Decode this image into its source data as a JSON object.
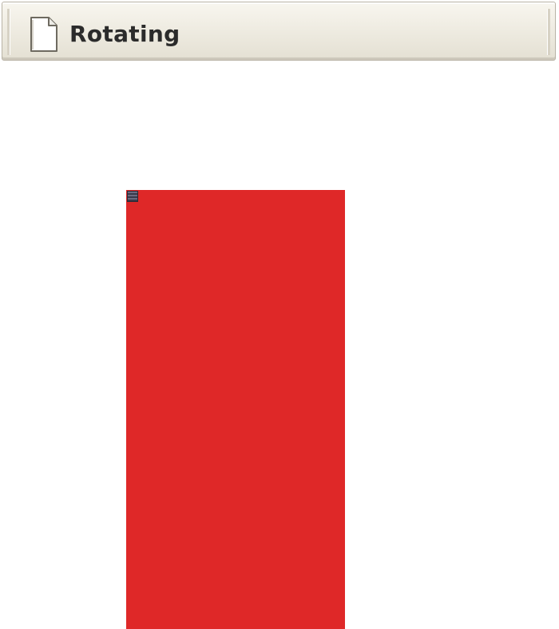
{
  "window": {
    "title": "Rotating",
    "icon": "document-icon"
  },
  "canvas": {
    "shape": "rectangle",
    "shape_color": "#df2828",
    "handle_icon": "rotation-handle-icon"
  }
}
